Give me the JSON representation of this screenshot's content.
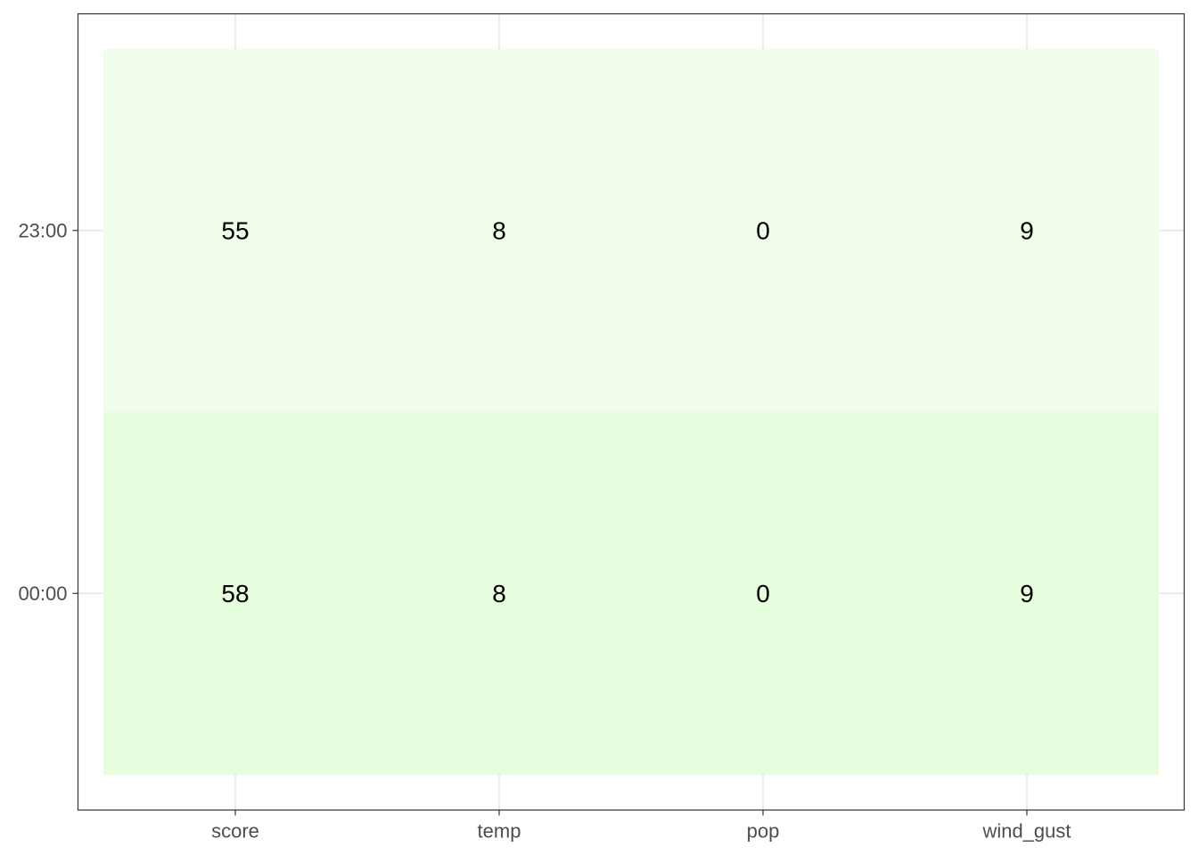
{
  "chart_data": {
    "type": "heatmap",
    "title": "",
    "xlabel": "",
    "ylabel": "",
    "x_categories": [
      "score",
      "temp",
      "pop",
      "wind_gust"
    ],
    "y_categories": [
      "00:00",
      "23:00"
    ],
    "rows": [
      {
        "y": "23:00",
        "values": [
          55,
          8,
          0,
          9
        ],
        "fill": "#f0fdea"
      },
      {
        "y": "00:00",
        "values": [
          58,
          8,
          0,
          9
        ],
        "fill": "#e6fede"
      }
    ],
    "grid": true,
    "legend": "none",
    "colors": {
      "grid": "#ebebeb",
      "panel_border": "#333333",
      "tick_text": "#4d4d4d",
      "cell_text": "#000000"
    }
  }
}
